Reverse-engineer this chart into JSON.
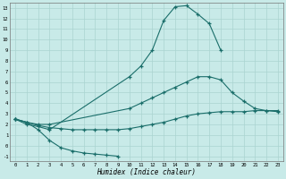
{
  "background_color": "#c8eae8",
  "grid_color": "#aad4d0",
  "line_color": "#1a6e6a",
  "xlabel": "Humidex (Indice chaleur)",
  "xlim": [
    -0.5,
    23.5
  ],
  "ylim": [
    -1.5,
    13.5
  ],
  "figsize": [
    3.2,
    2.0
  ],
  "dpi": 100,
  "line1_x": [
    0,
    1,
    2,
    3,
    4,
    5,
    6,
    7,
    8,
    9
  ],
  "line1_y": [
    2.5,
    2.2,
    1.5,
    0.5,
    -0.2,
    -0.5,
    -0.7,
    -0.8,
    -0.9,
    -1.0
  ],
  "line2_x": [
    0,
    1,
    2,
    3,
    10,
    11,
    12,
    13,
    14,
    15,
    16,
    17,
    18
  ],
  "line2_y": [
    2.5,
    2.0,
    1.8,
    1.5,
    6.5,
    7.5,
    9.0,
    11.8,
    13.1,
    13.2,
    12.4,
    11.5,
    9.0
  ],
  "line3_x": [
    0,
    1,
    2,
    3,
    10,
    11,
    12,
    13,
    14,
    15,
    16,
    17,
    18,
    19,
    20,
    21,
    22,
    23
  ],
  "line3_y": [
    2.5,
    2.2,
    2.0,
    2.0,
    3.5,
    4.0,
    4.5,
    5.0,
    5.5,
    6.0,
    6.5,
    6.5,
    6.2,
    5.0,
    4.2,
    3.5,
    3.3,
    3.2
  ],
  "line4_x": [
    0,
    1,
    2,
    3,
    4,
    5,
    6,
    7,
    8,
    9,
    10,
    11,
    12,
    13,
    14,
    15,
    16,
    17,
    18,
    19,
    20,
    21,
    22,
    23
  ],
  "line4_y": [
    2.5,
    2.2,
    1.9,
    1.7,
    1.6,
    1.5,
    1.5,
    1.5,
    1.5,
    1.5,
    1.6,
    1.8,
    2.0,
    2.2,
    2.5,
    2.8,
    3.0,
    3.1,
    3.2,
    3.2,
    3.2,
    3.3,
    3.3,
    3.3
  ],
  "xtick_labels": [
    "0",
    "1",
    "2",
    "3",
    "4",
    "5",
    "6",
    "7",
    "8",
    "9",
    "10",
    "11",
    "12",
    "13",
    "14",
    "15",
    "16",
    "17",
    "18",
    "19",
    "20",
    "21",
    "22",
    "23"
  ],
  "ytick_vals": [
    -1,
    0,
    1,
    2,
    3,
    4,
    5,
    6,
    7,
    8,
    9,
    10,
    11,
    12,
    13
  ],
  "ytick_labels": [
    "-1",
    "0",
    "1",
    "2",
    "3",
    "4",
    "5",
    "6",
    "7",
    "8",
    "9",
    "10",
    "11",
    "12",
    "13"
  ]
}
